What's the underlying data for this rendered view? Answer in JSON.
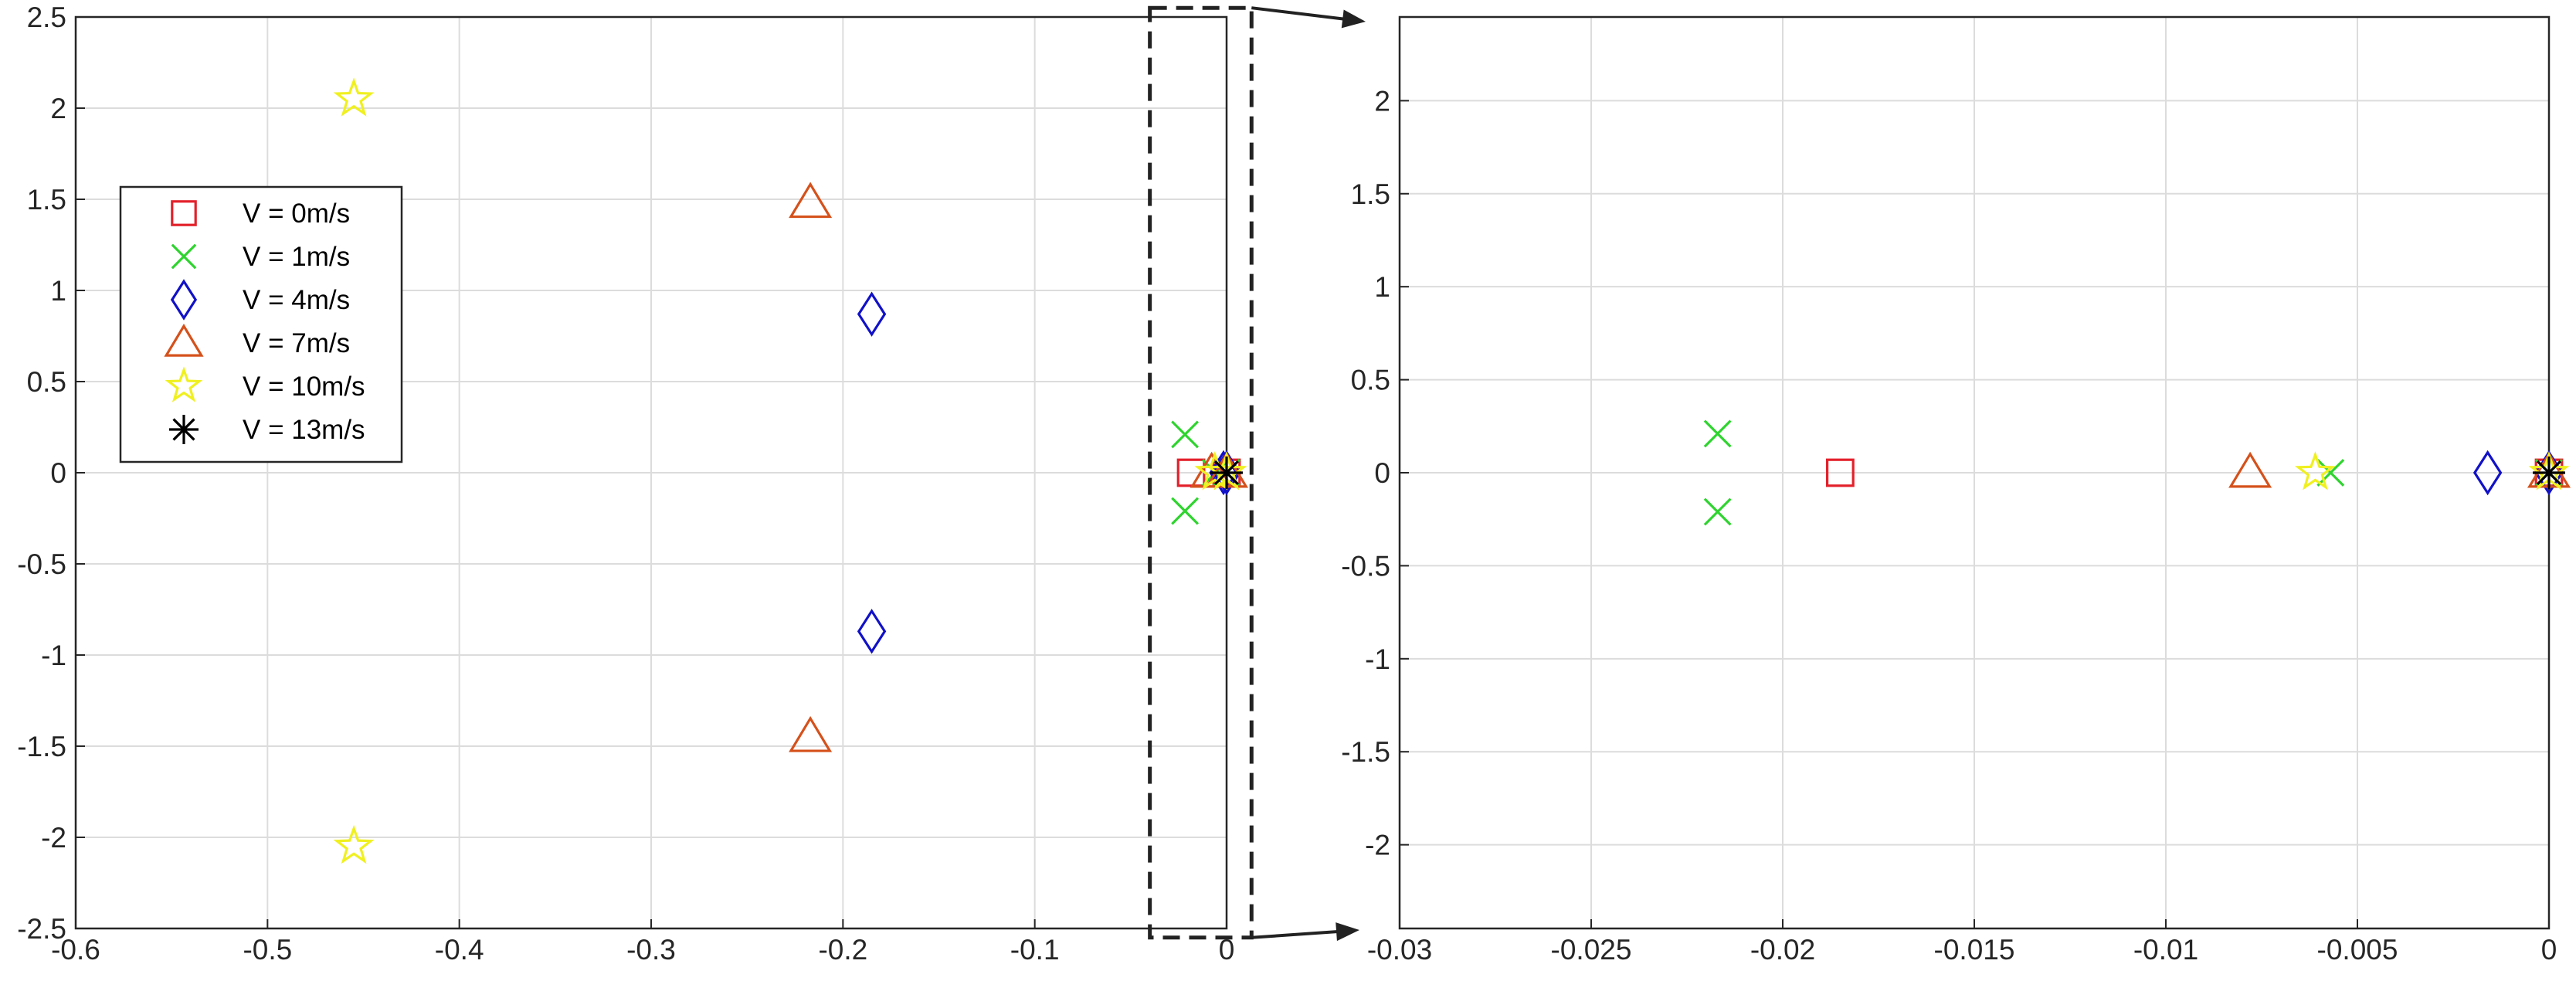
{
  "chart_data": [
    {
      "type": "scatter",
      "xlim": [
        -0.6,
        0
      ],
      "ylim": [
        -2.5,
        2.5
      ],
      "xticks": [
        -0.6,
        -0.5,
        -0.4,
        -0.3,
        -0.2,
        -0.1,
        0
      ],
      "xtick_labels": [
        "-0.6",
        "-0.5",
        "-0.4",
        "-0.3",
        "-0.2",
        "-0.1",
        "0"
      ],
      "yticks": [
        2.5,
        2,
        1.5,
        1,
        0.5,
        0,
        -0.5,
        -1,
        -1.5,
        -2,
        -2.5
      ],
      "ytick_labels": [
        "2.5",
        "2",
        "1.5",
        "1",
        "0.5",
        "0",
        "-0.5",
        "-1",
        "-1.5",
        "-2",
        "-2.5"
      ],
      "grid": true,
      "legend_position": "left",
      "series": [
        {
          "name": "V = 0m/s",
          "marker": "square",
          "color": "#e3212b",
          "points": [
            [
              -0.0185,
              0
            ],
            [
              0,
              0
            ]
          ]
        },
        {
          "name": "V = 1m/s",
          "marker": "x",
          "color": "#2fd42f",
          "points": [
            [
              -0.0217,
              0.21
            ],
            [
              -0.0217,
              -0.21
            ],
            [
              -0.0057,
              0
            ],
            [
              0,
              0
            ]
          ]
        },
        {
          "name": "V = 4m/s",
          "marker": "diamond",
          "color": "#1111c8",
          "points": [
            [
              -0.185,
              0.87
            ],
            [
              -0.185,
              -0.87
            ],
            [
              -0.0016,
              0
            ],
            [
              0,
              0
            ]
          ]
        },
        {
          "name": "V = 7m/s",
          "marker": "triangle",
          "color": "#d5511b",
          "points": [
            [
              -0.217,
              1.48
            ],
            [
              -0.217,
              -1.45
            ],
            [
              -0.0078,
              0
            ],
            [
              0,
              0
            ]
          ]
        },
        {
          "name": "V = 10m/s",
          "marker": "star",
          "color": "#f0f020",
          "points": [
            [
              -0.455,
              2.05
            ],
            [
              -0.455,
              -2.05
            ],
            [
              -0.0061,
              0
            ],
            [
              0,
              0
            ]
          ]
        },
        {
          "name": "V = 13m/s",
          "marker": "asterisk",
          "color": "#000000",
          "points": [
            [
              0,
              0
            ]
          ]
        }
      ]
    },
    {
      "type": "scatter",
      "xlim": [
        -0.03,
        0
      ],
      "ylim": [
        -2.45,
        2.45
      ],
      "xticks": [
        -0.03,
        -0.025,
        -0.02,
        -0.015,
        -0.01,
        -0.005,
        0
      ],
      "xtick_labels": [
        "-0.03",
        "-0.025",
        "-0.02",
        "-0.015",
        "-0.01",
        "-0.005",
        "0"
      ],
      "yticks": [
        2,
        1.5,
        1,
        0.5,
        0,
        -0.5,
        -1,
        -1.5,
        -2
      ],
      "ytick_labels": [
        "2",
        "1.5",
        "1",
        "0.5",
        "0",
        "-0.5",
        "-1",
        "-1.5",
        "-2"
      ],
      "grid": true,
      "series": [
        {
          "name": "V = 0m/s",
          "marker": "square",
          "color": "#e3212b",
          "points": [
            [
              -0.0185,
              0
            ],
            [
              0,
              0
            ]
          ]
        },
        {
          "name": "V = 1m/s",
          "marker": "x",
          "color": "#2fd42f",
          "points": [
            [
              -0.0217,
              0.21
            ],
            [
              -0.0217,
              -0.21
            ],
            [
              -0.0057,
              0
            ],
            [
              0,
              0
            ]
          ]
        },
        {
          "name": "V = 4m/s",
          "marker": "diamond",
          "color": "#1111c8",
          "points": [
            [
              -0.0016,
              0
            ],
            [
              0,
              0
            ]
          ]
        },
        {
          "name": "V = 7m/s",
          "marker": "triangle",
          "color": "#d5511b",
          "points": [
            [
              -0.0078,
              0
            ],
            [
              0,
              0
            ]
          ]
        },
        {
          "name": "V = 10m/s",
          "marker": "star",
          "color": "#f0f020",
          "points": [
            [
              -0.0061,
              0
            ],
            [
              0,
              0
            ]
          ]
        },
        {
          "name": "V = 13m/s",
          "marker": "asterisk",
          "color": "#000000",
          "points": [
            [
              0,
              0
            ]
          ]
        }
      ]
    }
  ],
  "zoom_indicator": {
    "x_range": [
      -0.04,
      0.013
    ],
    "y_range": [
      -2.55,
      2.55
    ]
  }
}
